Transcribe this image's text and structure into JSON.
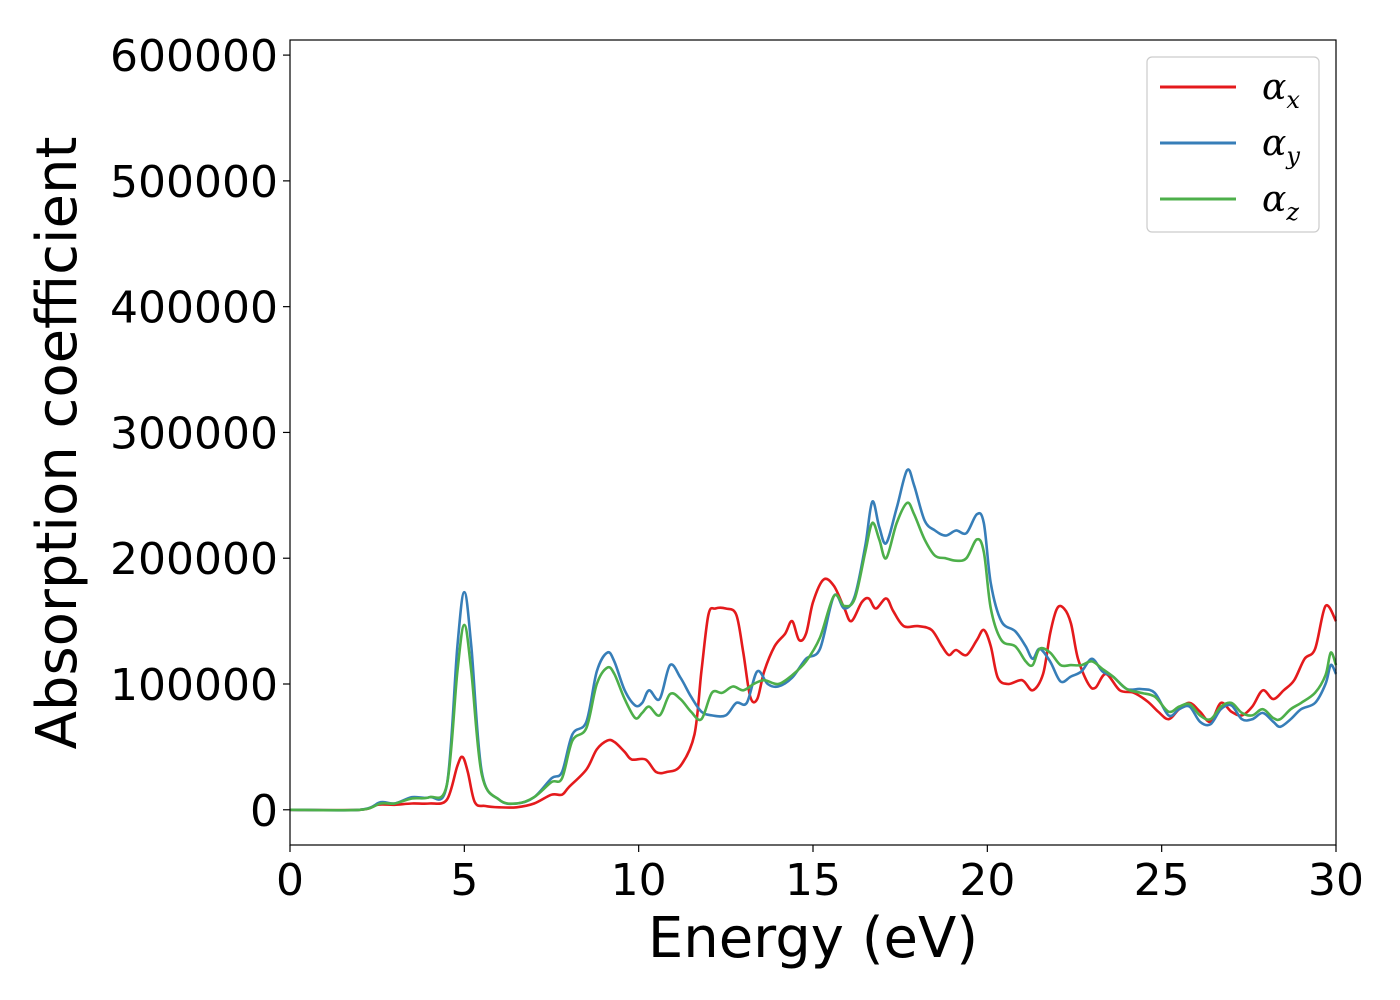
{
  "chart_data": {
    "type": "line",
    "xlabel": "Energy (eV)",
    "ylabel": "Absorption coefficient",
    "xlim": [
      0,
      30
    ],
    "ylim": [
      -28000,
      612000
    ],
    "xticks": [
      0,
      5,
      10,
      15,
      20,
      25,
      30
    ],
    "xtick_labels": [
      "0",
      "5",
      "10",
      "15",
      "20",
      "25",
      "30"
    ],
    "yticks": [
      0,
      100000,
      200000,
      300000,
      400000,
      500000,
      600000
    ],
    "ytick_labels": [
      "0",
      "100000",
      "200000",
      "300000",
      "400000",
      "500000",
      "600000"
    ],
    "grid": false,
    "legend_position": "top-right",
    "series": [
      {
        "name": "α_x",
        "label_main": "α",
        "label_sub": "x",
        "color": "#e41a1c",
        "points": [
          [
            0,
            0
          ],
          [
            2,
            0
          ],
          [
            2.5,
            4000
          ],
          [
            3,
            4000
          ],
          [
            3.5,
            5000
          ],
          [
            4,
            5000
          ],
          [
            4.5,
            8000
          ],
          [
            4.8,
            35000
          ],
          [
            4.95,
            42000
          ],
          [
            5.1,
            30000
          ],
          [
            5.3,
            6000
          ],
          [
            5.6,
            3000
          ],
          [
            6,
            2000
          ],
          [
            6.5,
            2000
          ],
          [
            7,
            5000
          ],
          [
            7.5,
            12000
          ],
          [
            7.8,
            12000
          ],
          [
            8,
            18000
          ],
          [
            8.5,
            32000
          ],
          [
            8.8,
            48000
          ],
          [
            9.1,
            55000
          ],
          [
            9.3,
            54000
          ],
          [
            9.6,
            46000
          ],
          [
            9.8,
            40000
          ],
          [
            10.2,
            40000
          ],
          [
            10.5,
            30000
          ],
          [
            10.8,
            30000
          ],
          [
            11.2,
            35000
          ],
          [
            11.6,
            60000
          ],
          [
            11.8,
            110000
          ],
          [
            12,
            155000
          ],
          [
            12.2,
            160000
          ],
          [
            12.5,
            160000
          ],
          [
            12.8,
            155000
          ],
          [
            13,
            125000
          ],
          [
            13.2,
            90000
          ],
          [
            13.4,
            88000
          ],
          [
            13.6,
            110000
          ],
          [
            13.9,
            130000
          ],
          [
            14.2,
            140000
          ],
          [
            14.4,
            150000
          ],
          [
            14.6,
            135000
          ],
          [
            14.8,
            140000
          ],
          [
            15,
            165000
          ],
          [
            15.3,
            183000
          ],
          [
            15.6,
            178000
          ],
          [
            15.9,
            160000
          ],
          [
            16.1,
            150000
          ],
          [
            16.4,
            165000
          ],
          [
            16.6,
            168000
          ],
          [
            16.8,
            160000
          ],
          [
            17.1,
            168000
          ],
          [
            17.3,
            158000
          ],
          [
            17.6,
            146000
          ],
          [
            18,
            146000
          ],
          [
            18.4,
            143000
          ],
          [
            18.7,
            130000
          ],
          [
            18.9,
            123000
          ],
          [
            19.1,
            127000
          ],
          [
            19.4,
            123000
          ],
          [
            19.7,
            135000
          ],
          [
            19.9,
            143000
          ],
          [
            20.1,
            130000
          ],
          [
            20.3,
            105000
          ],
          [
            20.6,
            100000
          ],
          [
            21,
            103000
          ],
          [
            21.3,
            95000
          ],
          [
            21.6,
            108000
          ],
          [
            21.8,
            140000
          ],
          [
            22,
            160000
          ],
          [
            22.2,
            160000
          ],
          [
            22.4,
            148000
          ],
          [
            22.6,
            120000
          ],
          [
            22.9,
            100000
          ],
          [
            23.1,
            97000
          ],
          [
            23.4,
            108000
          ],
          [
            23.8,
            95000
          ],
          [
            24.2,
            93000
          ],
          [
            24.6,
            86000
          ],
          [
            24.9,
            78000
          ],
          [
            25.2,
            72000
          ],
          [
            25.5,
            80000
          ],
          [
            25.8,
            85000
          ],
          [
            26.1,
            78000
          ],
          [
            26.4,
            70000
          ],
          [
            26.7,
            85000
          ],
          [
            27,
            78000
          ],
          [
            27.3,
            75000
          ],
          [
            27.6,
            82000
          ],
          [
            27.9,
            95000
          ],
          [
            28.2,
            88000
          ],
          [
            28.5,
            95000
          ],
          [
            28.8,
            103000
          ],
          [
            29.1,
            120000
          ],
          [
            29.4,
            128000
          ],
          [
            29.7,
            162000
          ],
          [
            30,
            150000
          ]
        ]
      },
      {
        "name": "α_y",
        "label_main": "α",
        "label_sub": "y",
        "color": "#377eb8",
        "points": [
          [
            0,
            0
          ],
          [
            2,
            0
          ],
          [
            2.6,
            6000
          ],
          [
            3,
            5000
          ],
          [
            3.5,
            10000
          ],
          [
            4,
            10000
          ],
          [
            4.5,
            20000
          ],
          [
            4.8,
            130000
          ],
          [
            5,
            173000
          ],
          [
            5.2,
            130000
          ],
          [
            5.5,
            30000
          ],
          [
            6,
            8000
          ],
          [
            6.5,
            5000
          ],
          [
            7,
            10000
          ],
          [
            7.5,
            25000
          ],
          [
            7.8,
            30000
          ],
          [
            8.1,
            60000
          ],
          [
            8.5,
            70000
          ],
          [
            8.8,
            110000
          ],
          [
            9.1,
            125000
          ],
          [
            9.3,
            118000
          ],
          [
            9.6,
            95000
          ],
          [
            9.9,
            83000
          ],
          [
            10.1,
            85000
          ],
          [
            10.3,
            95000
          ],
          [
            10.6,
            88000
          ],
          [
            10.9,
            115000
          ],
          [
            11.2,
            105000
          ],
          [
            11.5,
            90000
          ],
          [
            11.8,
            78000
          ],
          [
            12.1,
            75000
          ],
          [
            12.5,
            75000
          ],
          [
            12.8,
            85000
          ],
          [
            13.1,
            85000
          ],
          [
            13.4,
            110000
          ],
          [
            13.7,
            100000
          ],
          [
            14,
            98000
          ],
          [
            14.4,
            105000
          ],
          [
            14.8,
            120000
          ],
          [
            15.2,
            128000
          ],
          [
            15.6,
            170000
          ],
          [
            15.9,
            160000
          ],
          [
            16.2,
            170000
          ],
          [
            16.5,
            210000
          ],
          [
            16.7,
            245000
          ],
          [
            16.9,
            225000
          ],
          [
            17.1,
            212000
          ],
          [
            17.4,
            240000
          ],
          [
            17.7,
            270000
          ],
          [
            17.9,
            258000
          ],
          [
            18.2,
            230000
          ],
          [
            18.5,
            222000
          ],
          [
            18.8,
            218000
          ],
          [
            19.1,
            222000
          ],
          [
            19.4,
            220000
          ],
          [
            19.7,
            235000
          ],
          [
            19.9,
            228000
          ],
          [
            20.1,
            180000
          ],
          [
            20.4,
            150000
          ],
          [
            20.8,
            142000
          ],
          [
            21.1,
            130000
          ],
          [
            21.3,
            120000
          ],
          [
            21.5,
            128000
          ],
          [
            21.8,
            118000
          ],
          [
            22.1,
            102000
          ],
          [
            22.4,
            106000
          ],
          [
            22.7,
            110000
          ],
          [
            23,
            120000
          ],
          [
            23.3,
            110000
          ],
          [
            23.6,
            106000
          ],
          [
            24,
            96000
          ],
          [
            24.4,
            96000
          ],
          [
            24.8,
            93000
          ],
          [
            25.2,
            75000
          ],
          [
            25.5,
            80000
          ],
          [
            25.8,
            82000
          ],
          [
            26.1,
            70000
          ],
          [
            26.4,
            68000
          ],
          [
            26.7,
            80000
          ],
          [
            27,
            83000
          ],
          [
            27.3,
            72000
          ],
          [
            27.6,
            72000
          ],
          [
            27.9,
            77000
          ],
          [
            28.2,
            70000
          ],
          [
            28.4,
            66000
          ],
          [
            28.7,
            72000
          ],
          [
            29,
            80000
          ],
          [
            29.4,
            85000
          ],
          [
            29.7,
            100000
          ],
          [
            29.85,
            115000
          ],
          [
            30,
            108000
          ]
        ]
      },
      {
        "name": "α_z",
        "label_main": "α",
        "label_sub": "z",
        "color": "#4daf4a",
        "points": [
          [
            0,
            0
          ],
          [
            2,
            0
          ],
          [
            2.6,
            5000
          ],
          [
            3,
            5000
          ],
          [
            3.5,
            9000
          ],
          [
            4,
            10000
          ],
          [
            4.5,
            20000
          ],
          [
            4.8,
            110000
          ],
          [
            5,
            147000
          ],
          [
            5.2,
            110000
          ],
          [
            5.5,
            28000
          ],
          [
            6,
            8000
          ],
          [
            6.5,
            5000
          ],
          [
            7,
            10000
          ],
          [
            7.5,
            22000
          ],
          [
            7.8,
            25000
          ],
          [
            8.1,
            55000
          ],
          [
            8.5,
            65000
          ],
          [
            8.8,
            100000
          ],
          [
            9.1,
            113000
          ],
          [
            9.3,
            108000
          ],
          [
            9.6,
            88000
          ],
          [
            9.9,
            73000
          ],
          [
            10.1,
            77000
          ],
          [
            10.3,
            82000
          ],
          [
            10.6,
            75000
          ],
          [
            10.9,
            92000
          ],
          [
            11.2,
            88000
          ],
          [
            11.5,
            78000
          ],
          [
            11.8,
            72000
          ],
          [
            12.1,
            93000
          ],
          [
            12.4,
            93000
          ],
          [
            12.7,
            98000
          ],
          [
            13,
            95000
          ],
          [
            13.3,
            100000
          ],
          [
            13.6,
            103000
          ],
          [
            14,
            100000
          ],
          [
            14.4,
            107000
          ],
          [
            14.8,
            118000
          ],
          [
            15.2,
            137000
          ],
          [
            15.6,
            170000
          ],
          [
            15.9,
            162000
          ],
          [
            16.2,
            168000
          ],
          [
            16.5,
            205000
          ],
          [
            16.7,
            228000
          ],
          [
            16.9,
            215000
          ],
          [
            17.1,
            200000
          ],
          [
            17.4,
            228000
          ],
          [
            17.7,
            244000
          ],
          [
            17.9,
            235000
          ],
          [
            18.2,
            215000
          ],
          [
            18.5,
            202000
          ],
          [
            18.8,
            200000
          ],
          [
            19.1,
            198000
          ],
          [
            19.4,
            200000
          ],
          [
            19.7,
            215000
          ],
          [
            19.9,
            205000
          ],
          [
            20.1,
            160000
          ],
          [
            20.4,
            135000
          ],
          [
            20.8,
            130000
          ],
          [
            21.1,
            118000
          ],
          [
            21.3,
            115000
          ],
          [
            21.5,
            128000
          ],
          [
            21.8,
            125000
          ],
          [
            22.1,
            115000
          ],
          [
            22.4,
            115000
          ],
          [
            22.7,
            115000
          ],
          [
            23,
            118000
          ],
          [
            23.3,
            112000
          ],
          [
            23.6,
            106000
          ],
          [
            24,
            96000
          ],
          [
            24.4,
            93000
          ],
          [
            24.8,
            90000
          ],
          [
            25.2,
            78000
          ],
          [
            25.5,
            82000
          ],
          [
            25.8,
            84000
          ],
          [
            26.1,
            75000
          ],
          [
            26.4,
            72000
          ],
          [
            26.7,
            82000
          ],
          [
            27,
            85000
          ],
          [
            27.3,
            77000
          ],
          [
            27.6,
            75000
          ],
          [
            27.9,
            80000
          ],
          [
            28.2,
            73000
          ],
          [
            28.4,
            72000
          ],
          [
            28.7,
            80000
          ],
          [
            29,
            85000
          ],
          [
            29.4,
            93000
          ],
          [
            29.7,
            107000
          ],
          [
            29.85,
            125000
          ],
          [
            30,
            115000
          ]
        ]
      }
    ]
  }
}
